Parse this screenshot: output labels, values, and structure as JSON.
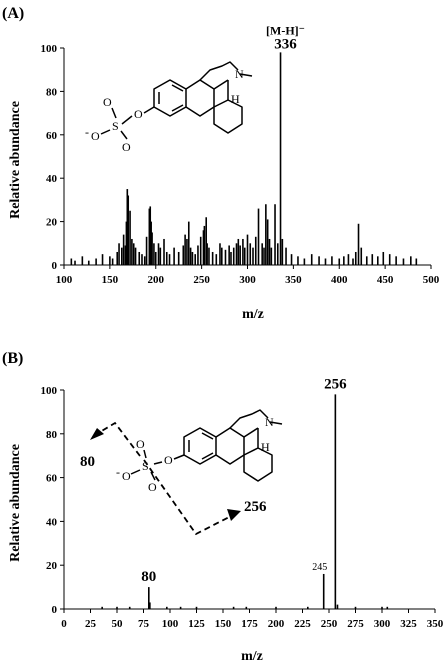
{
  "chart_data": [
    {
      "type": "bar",
      "panel_label": "(A)",
      "xlabel": "m/z",
      "ylabel": "Relative abundance",
      "xlim": [
        100,
        500
      ],
      "ylim": [
        0,
        100
      ],
      "x_ticks": [
        "100",
        "150",
        "200",
        "250",
        "300",
        "350",
        "400",
        "450",
        "500"
      ],
      "y_ticks": [
        "0",
        "20",
        "40",
        "60",
        "80",
        "100"
      ],
      "annotations": [
        {
          "text": "[M-H]⁻",
          "x": 336
        },
        {
          "text": "336",
          "x": 336
        }
      ],
      "x": [
        108,
        112,
        120,
        127,
        135,
        142,
        150,
        153,
        158,
        160,
        163,
        165,
        167,
        168,
        169,
        170,
        172,
        174,
        176,
        178,
        182,
        185,
        188,
        190,
        193,
        194,
        195,
        196,
        198,
        200,
        203,
        205,
        209,
        212,
        215,
        220,
        225,
        230,
        232,
        234,
        236,
        238,
        240,
        243,
        246,
        249,
        252,
        253,
        255,
        256,
        258,
        262,
        266,
        270,
        272,
        276,
        280,
        282,
        285,
        288,
        290,
        292,
        295,
        297,
        300,
        303,
        306,
        309,
        312,
        316,
        318,
        320,
        322,
        324,
        326,
        330,
        333,
        336,
        338,
        342,
        348,
        355,
        362,
        370,
        378,
        385,
        392,
        400,
        405,
        410,
        415,
        418,
        421,
        424,
        430,
        436,
        442,
        448,
        455,
        462,
        470,
        478,
        484
      ],
      "values": [
        3,
        2,
        4,
        2,
        3,
        5,
        4,
        3,
        6,
        10,
        8,
        14,
        9,
        20,
        35,
        32,
        25,
        12,
        10,
        8,
        6,
        5,
        4,
        13,
        26,
        27,
        20,
        15,
        10,
        6,
        10,
        8,
        12,
        6,
        5,
        8,
        6,
        9,
        14,
        12,
        20,
        8,
        6,
        5,
        9,
        13,
        16,
        18,
        22,
        10,
        8,
        6,
        5,
        10,
        8,
        7,
        9,
        6,
        8,
        10,
        12,
        9,
        12,
        8,
        14,
        10,
        8,
        13,
        26,
        10,
        8,
        28,
        21,
        12,
        8,
        28,
        10,
        98,
        12,
        8,
        5,
        4,
        3,
        5,
        4,
        3,
        4,
        3,
        4,
        5,
        3,
        6,
        19,
        8,
        4,
        5,
        4,
        6,
        5,
        4,
        3,
        4,
        3
      ]
    },
    {
      "type": "bar",
      "panel_label": "(B)",
      "xlabel": "m/z",
      "ylabel": "Relative abundance",
      "xlim": [
        0,
        350
      ],
      "ylim": [
        0,
        100
      ],
      "x_ticks": [
        "0",
        "25",
        "50",
        "75",
        "100",
        "125",
        "150",
        "175",
        "200",
        "225",
        "250",
        "275",
        "300",
        "325",
        "350"
      ],
      "y_ticks": [
        "0",
        "20",
        "40",
        "60",
        "80",
        "100"
      ],
      "annotations": [
        {
          "text": "256",
          "x": 256
        },
        {
          "text": "245",
          "x": 245
        },
        {
          "text": "80",
          "x": 80
        }
      ],
      "arrow_labels": [
        "80",
        "256"
      ],
      "x": [
        36,
        50,
        62,
        80,
        81,
        97,
        110,
        125,
        160,
        172,
        200,
        230,
        245,
        256,
        258,
        275,
        300,
        305
      ],
      "values": [
        1,
        1,
        1,
        10,
        3,
        1,
        1,
        1,
        1,
        1,
        1,
        1,
        16,
        98,
        2,
        1,
        1,
        1
      ]
    }
  ],
  "structure_labels": {
    "n_atom": "N",
    "h_atom": "H",
    "o_atom": "O",
    "s_atom": "S",
    "neg_o": "O",
    "minus": "-"
  }
}
